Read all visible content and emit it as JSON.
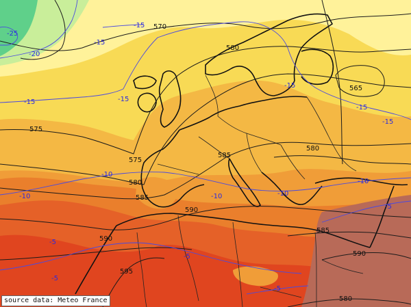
{
  "map": {
    "source_credit": "source data: Meteo France",
    "field_colors": {
      "cold_core": "#5fd08a",
      "cool": "#c9ee9a",
      "pale": "#fff29a",
      "yellow": "#f8da55",
      "light_orange": "#f4b844",
      "orange": "#f09d38",
      "dark_orange": "#ea7f2c",
      "red_orange": "#e56128",
      "red": "#e0451f",
      "brown_hot": "#b86a58"
    },
    "geopotential_labels": [
      "570",
      "575",
      "575",
      "580",
      "580",
      "580",
      "585",
      "585",
      "585",
      "565",
      "590",
      "590",
      "590",
      "595",
      "580"
    ],
    "temperature_labels": [
      "-25",
      "-20",
      "-15",
      "-15",
      "-15",
      "-15",
      "-15",
      "-15",
      "-15",
      "-10",
      "-10",
      "-10",
      "-10",
      "-10",
      "-5",
      "-5",
      "-5",
      "-5",
      "-5"
    ]
  }
}
